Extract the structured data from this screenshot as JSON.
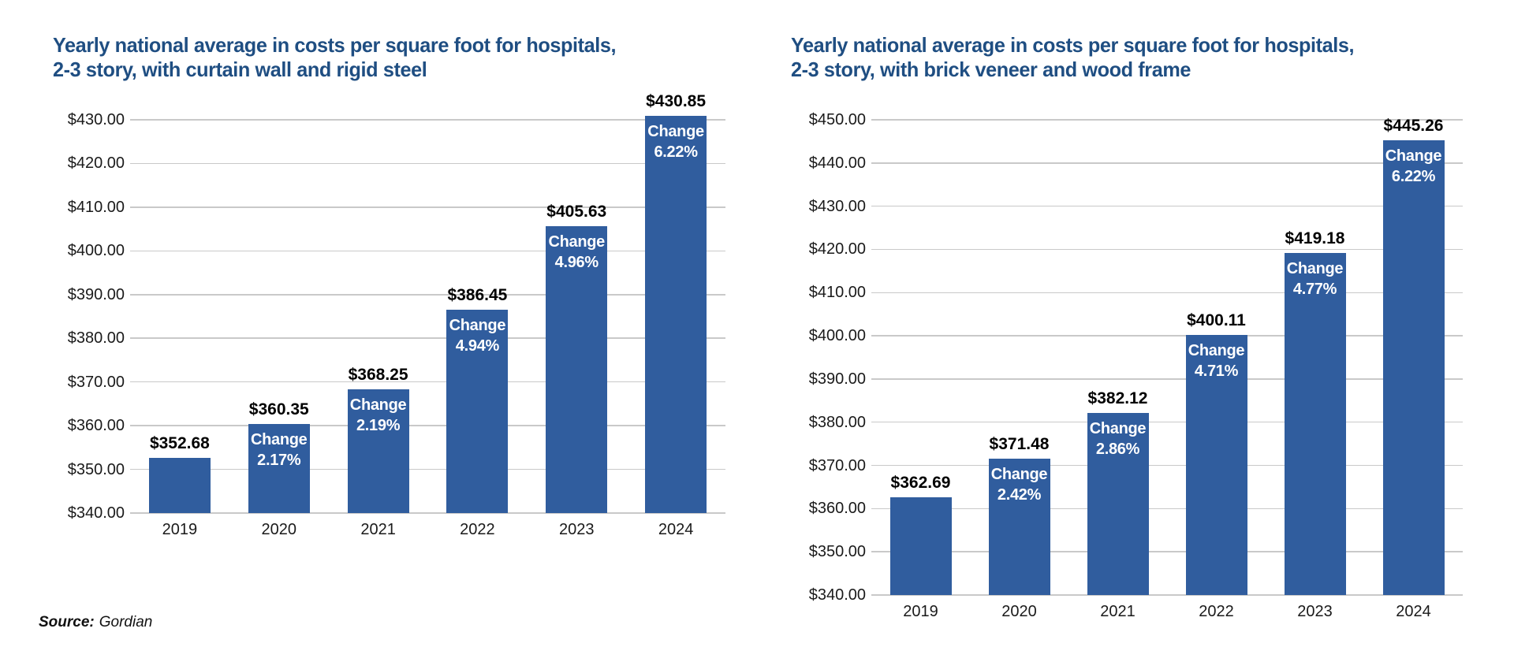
{
  "source": {
    "prefix": "Source:",
    "name": "Gordian"
  },
  "colors": {
    "bar": "#305D9E",
    "title": "#1F4E82",
    "gridline": "#C9C9C9",
    "tick_text": "#1A1A1A",
    "year_text": "#1A1A1A",
    "value_text": "#000000",
    "change_text": "#FFFFFF",
    "background": "#FFFFFF"
  },
  "chart_data": [
    {
      "type": "bar",
      "title": "Yearly national average in costs per square foot for hospitals, 2-3 story, with curtain wall and rigid steel",
      "title_lines": [
        "Yearly national average in costs per square foot for hospitals,",
        "2-3 story, with curtain wall and rigid steel"
      ],
      "xlabel": "",
      "ylabel": "",
      "ylim": [
        340,
        430
      ],
      "tick_step": 10,
      "tick_labels": [
        "$430.00",
        "$420.00",
        "$410.00",
        "$400.00",
        "$390.00",
        "$380.00",
        "$370.00",
        "$360.00",
        "$350.00",
        "$340.00"
      ],
      "grid": true,
      "legend": "none",
      "categories": [
        "2019",
        "2020",
        "2021",
        "2022",
        "2023",
        "2024"
      ],
      "values": [
        352.68,
        360.35,
        368.25,
        386.45,
        405.63,
        430.85
      ],
      "value_labels": [
        "$352.68",
        "$360.35",
        "$368.25",
        "$386.45",
        "$405.63",
        "$430.85"
      ],
      "change_word": "Change",
      "change_labels": [
        null,
        "2.17%",
        "2.19%",
        "4.94%",
        "4.96%",
        "6.22%"
      ]
    },
    {
      "type": "bar",
      "title": "Yearly national average in costs per square foot for hospitals, 2-3 story, with brick veneer and wood frame",
      "title_lines": [
        "Yearly national average in costs per square foot for hospitals,",
        "2-3 story, with brick veneer and wood frame"
      ],
      "xlabel": "",
      "ylabel": "",
      "ylim": [
        340,
        450
      ],
      "tick_step": 10,
      "tick_labels": [
        "$450.00",
        "$440.00",
        "$430.00",
        "$420.00",
        "$410.00",
        "$400.00",
        "$390.00",
        "$380.00",
        "$370.00",
        "$360.00",
        "$350.00",
        "$340.00"
      ],
      "grid": true,
      "legend": "none",
      "categories": [
        "2019",
        "2020",
        "2021",
        "2022",
        "2023",
        "2024"
      ],
      "values": [
        362.69,
        371.48,
        382.12,
        400.11,
        419.18,
        445.26
      ],
      "value_labels": [
        "$362.69",
        "$371.48",
        "$382.12",
        "$400.11",
        "$419.18",
        "$445.26"
      ],
      "change_word": "Change",
      "change_labels": [
        null,
        "2.42%",
        "2.86%",
        "4.71%",
        "4.77%",
        "6.22%"
      ]
    }
  ]
}
